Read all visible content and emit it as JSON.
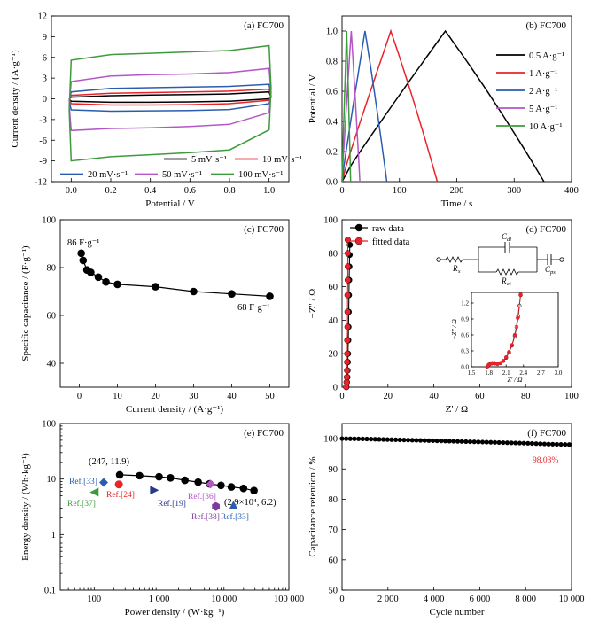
{
  "chart_data": [
    {
      "panel": "a",
      "type": "line",
      "title": "(a) FC700",
      "xlabel": "Potential / V",
      "ylabel": "Current density / (A·g⁻¹)",
      "xlim": [
        -0.1,
        1.1
      ],
      "ylim": [
        -12,
        12
      ],
      "xticks": [
        0.0,
        0.2,
        0.4,
        0.6,
        0.8,
        1.0
      ],
      "xtick_labels": [
        "0.0",
        "0.2",
        "0.4",
        "0.6",
        "0.8",
        "1.0"
      ],
      "yticks": [
        -12,
        -9,
        -6,
        -3,
        0,
        3,
        6,
        9,
        12
      ],
      "ytick_labels": [
        "-12",
        "-9",
        "-6",
        "-3",
        "0",
        "3",
        "6",
        "9",
        "12"
      ],
      "legend": "bottom",
      "series": [
        {
          "name": "5 mV·s⁻¹",
          "color": "#000000",
          "upper": [
            0.25,
            0.45,
            0.55,
            0.6,
            0.7,
            1.0
          ],
          "lower": [
            -0.35,
            -0.5,
            -0.5,
            -0.45,
            -0.35,
            0.0
          ]
        },
        {
          "name": "10 mV·s⁻¹",
          "color": "#e8232a",
          "upper": [
            0.5,
            0.8,
            0.9,
            1.0,
            1.1,
            1.4
          ],
          "lower": [
            -0.7,
            -0.9,
            -0.9,
            -0.85,
            -0.7,
            -0.2
          ]
        },
        {
          "name": "20 mV·s⁻¹",
          "color": "#2a5db0",
          "upper": [
            1.0,
            1.5,
            1.6,
            1.7,
            1.8,
            2.1
          ],
          "lower": [
            -1.6,
            -1.8,
            -1.75,
            -1.7,
            -1.55,
            -0.7
          ]
        },
        {
          "name": "50 mV·s⁻¹",
          "color": "#b455c8",
          "upper": [
            2.5,
            3.3,
            3.5,
            3.6,
            3.8,
            4.4
          ],
          "lower": [
            -4.6,
            -4.3,
            -4.2,
            -4.0,
            -3.7,
            -2.0
          ]
        },
        {
          "name": "100 mV·s⁻¹",
          "color": "#3c9b3c",
          "upper": [
            5.6,
            6.4,
            6.6,
            6.8,
            7.0,
            7.7
          ],
          "lower": [
            -9.0,
            -8.4,
            -8.1,
            -7.8,
            -7.4,
            -4.5
          ]
        }
      ]
    },
    {
      "panel": "b",
      "type": "line",
      "title": "(b) FC700",
      "xlabel": "Time / s",
      "ylabel": "Potential / V",
      "xlim": [
        0,
        400
      ],
      "ylim": [
        0,
        1.1
      ],
      "xticks": [
        0,
        100,
        200,
        300,
        400
      ],
      "xtick_labels": [
        "0",
        "100",
        "200",
        "300",
        "400"
      ],
      "yticks": [
        0.0,
        0.2,
        0.4,
        0.6,
        0.8,
        1.0
      ],
      "ytick_labels": [
        "0.0",
        "0.2",
        "0.4",
        "0.6",
        "0.8",
        "1.0"
      ],
      "legend": "right",
      "series": [
        {
          "name": "0.5 A·g⁻¹",
          "color": "#000000",
          "x": [
            0,
            180,
            352
          ],
          "y": [
            0.0,
            1.0,
            0.0
          ]
        },
        {
          "name": "1 A·g⁻¹",
          "color": "#e8232a",
          "x": [
            0,
            85,
            166
          ],
          "y": [
            0.0,
            1.0,
            0.0
          ]
        },
        {
          "name": "2 A·g⁻¹",
          "color": "#2a5db0",
          "x": [
            0,
            40,
            78
          ],
          "y": [
            0.0,
            1.0,
            0.0
          ]
        },
        {
          "name": "5 A·g⁻¹",
          "color": "#b455c8",
          "x": [
            0,
            16,
            31
          ],
          "y": [
            0.0,
            1.0,
            0.0
          ]
        },
        {
          "name": "10 A·g⁻¹",
          "color": "#3c9b3c",
          "x": [
            0,
            8,
            15
          ],
          "y": [
            0.0,
            1.0,
            0.0
          ]
        }
      ]
    },
    {
      "panel": "c",
      "type": "line",
      "title": "(c) FC700",
      "xlabel": "Current density / (A·g⁻¹)",
      "ylabel": "Specific capacitance / (F·g⁻¹)",
      "xlim": [
        -5,
        55
      ],
      "ylim": [
        30,
        100
      ],
      "xticks": [
        0,
        10,
        20,
        30,
        40,
        50
      ],
      "xtick_labels": [
        "0",
        "10",
        "20",
        "30",
        "40",
        "50"
      ],
      "yticks": [
        40,
        60,
        80,
        100
      ],
      "ytick_labels": [
        "40",
        "60",
        "80",
        "100"
      ],
      "annotations": [
        "86 F·g⁻¹",
        "68 F·g⁻¹"
      ],
      "x": [
        0.5,
        1,
        2,
        3,
        5,
        7,
        10,
        20,
        30,
        40,
        50
      ],
      "y": [
        86,
        83,
        79,
        78,
        76,
        74,
        73,
        72,
        70,
        69,
        68
      ]
    },
    {
      "panel": "d",
      "type": "scatter",
      "title": "(d) FC700",
      "xlabel": "Z' / Ω",
      "ylabel": "−Z'' / Ω",
      "xlim": [
        0,
        100
      ],
      "ylim": [
        0,
        100
      ],
      "xticks": [
        0,
        20,
        40,
        60,
        80,
        100
      ],
      "xtick_labels": [
        "0",
        "20",
        "40",
        "60",
        "80",
        "100"
      ],
      "yticks": [
        0,
        20,
        40,
        60,
        80,
        100
      ],
      "ytick_labels": [
        "0",
        "20",
        "40",
        "60",
        "80",
        "100"
      ],
      "legend": "top-left",
      "circuit_labels": [
        "C",
        "dl",
        "R",
        "s",
        "R",
        "ct",
        "C",
        "ps"
      ],
      "series": [
        {
          "name": "raw data",
          "color": "#000000",
          "x": [
            1.9,
            2.1,
            2.3,
            2.4,
            2.5,
            2.6,
            2.7,
            2.8,
            2.9,
            3.0,
            3.1,
            3.2,
            3.3,
            3.4
          ],
          "y": [
            0.1,
            3,
            6,
            10,
            15,
            20,
            28,
            36,
            45,
            55,
            64,
            72,
            79,
            85
          ]
        },
        {
          "name": "fitted data",
          "color": "#e8232a",
          "x": [
            1.8,
            2.0,
            2.1,
            2.2,
            2.2,
            2.3,
            2.3,
            2.4,
            2.4,
            2.4,
            2.5,
            2.5,
            2.5,
            2.5
          ],
          "y": [
            0.1,
            3,
            6,
            10,
            15,
            20,
            28,
            36,
            45,
            55,
            64,
            72,
            80,
            88
          ]
        }
      ],
      "inset": {
        "xlabel": "Z' / Ω",
        "ylabel": "−Z'' / Ω",
        "xlim": [
          1.5,
          3.0
        ],
        "ylim": [
          0,
          1.4
        ],
        "xticks": [
          1.5,
          1.8,
          2.1,
          2.4,
          2.7,
          3.0
        ],
        "xtick_labels": [
          "1.5",
          "1.8",
          "2.1",
          "2.4",
          "2.7",
          "3.0"
        ],
        "yticks": [
          0.0,
          0.3,
          0.6,
          0.9,
          1.2
        ],
        "ytick_labels": [
          "0.0",
          "0.3",
          "0.6",
          "0.9",
          "1.2"
        ],
        "series": [
          {
            "name": "raw data",
            "color": "#000000",
            "x": [
              1.78,
              1.82,
              1.86,
              1.9,
              1.95,
              2.0,
              2.05,
              2.1,
              2.15,
              2.2,
              2.25,
              2.28,
              2.31,
              2.33,
              2.35
            ],
            "y": [
              0.01,
              0.05,
              0.07,
              0.07,
              0.06,
              0.07,
              0.11,
              0.17,
              0.27,
              0.4,
              0.58,
              0.75,
              0.95,
              1.15,
              1.35
            ]
          },
          {
            "name": "fitted data",
            "color": "#e8232a",
            "x": [
              1.77,
              1.8,
              1.85,
              1.9,
              1.95,
              2.0,
              2.05,
              2.1,
              2.15,
              2.2,
              2.25,
              2.3,
              2.35
            ],
            "y": [
              0.0,
              0.04,
              0.06,
              0.06,
              0.05,
              0.07,
              0.11,
              0.18,
              0.28,
              0.41,
              0.6,
              0.92,
              1.36
            ]
          }
        ]
      }
    },
    {
      "panel": "e",
      "type": "scatter",
      "title": "(e) FC700",
      "xlabel": "Power density / (W·kg⁻¹)",
      "ylabel": "Energy density / (Wh·kg⁻¹)",
      "xscale": "log",
      "yscale": "log",
      "xlim": [
        30,
        100000
      ],
      "ylim": [
        0.1,
        100
      ],
      "xticks": [
        100,
        1000,
        10000,
        100000
      ],
      "xtick_labels": [
        "100",
        "1 000",
        "10 000",
        "100 000"
      ],
      "yticks": [
        0.1,
        1,
        10,
        100
      ],
      "ytick_labels": [
        "0.1",
        "1",
        "10",
        "100"
      ],
      "annotations": [
        "(247, 11.9)",
        "(2.9×10⁴, 6.2)"
      ],
      "x": [
        247,
        500,
        1000,
        1500,
        2500,
        4000,
        6000,
        9000,
        13000,
        20000,
        29000
      ],
      "y": [
        11.9,
        11.5,
        11.0,
        10.5,
        9.5,
        8.8,
        8.2,
        7.7,
        7.2,
        6.8,
        6.2
      ],
      "references": [
        {
          "label": "Ref.[33]",
          "color": "#2a5db0",
          "marker": "diamond",
          "x": 140,
          "y": 8.7
        },
        {
          "label": "Ref.[24]",
          "color": "#e8232a",
          "marker": "circle",
          "x": 240,
          "y": 8.0
        },
        {
          "label": "Ref.[37]",
          "color": "#3c9b3c",
          "marker": "triangle-left",
          "x": 100,
          "y": 5.8
        },
        {
          "label": "Ref.[19]",
          "color": "#2a3a8a",
          "marker": "triangle-right",
          "x": 850,
          "y": 6.3
        },
        {
          "label": "Ref.[36]",
          "color": "#b455c8",
          "marker": "diamond",
          "x": 6200,
          "y": 8.1
        },
        {
          "label": "Ref.[38]",
          "color": "#7b3a9c",
          "marker": "hexagon",
          "x": 7500,
          "y": 3.2
        },
        {
          "label": "Ref.[33]",
          "color": "#2a5db0",
          "marker": "triangle-up",
          "x": 14000,
          "y": 3.4
        }
      ]
    },
    {
      "panel": "f",
      "type": "line",
      "title": "(f) FC700",
      "xlabel": "Cycle number",
      "ylabel": "Capacitance retention / %",
      "xlim": [
        0,
        10000
      ],
      "ylim": [
        50,
        105
      ],
      "xticks": [
        0,
        2000,
        4000,
        6000,
        8000,
        10000
      ],
      "xtick_labels": [
        "0",
        "2 000",
        "4 000",
        "6 000",
        "8 000",
        "10 000"
      ],
      "yticks": [
        50,
        60,
        70,
        80,
        90,
        100
      ],
      "ytick_labels": [
        "50",
        "60",
        "70",
        "80",
        "90",
        "100"
      ],
      "annotations": [
        "98.03%"
      ],
      "x": [
        0,
        1000,
        2000,
        3000,
        4000,
        5000,
        6000,
        7000,
        8000,
        9000,
        10000
      ],
      "y": [
        100,
        99.9,
        99.7,
        99.5,
        99.3,
        99.1,
        98.9,
        98.7,
        98.5,
        98.2,
        98.03
      ]
    }
  ]
}
